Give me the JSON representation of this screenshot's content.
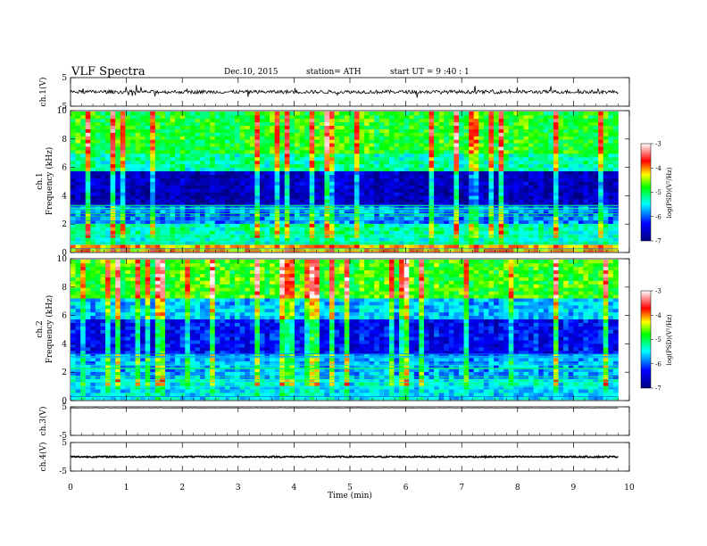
{
  "header": {
    "title": "VLF  Spectra",
    "date": "Dec.10, 2015",
    "station": "station= ATH",
    "start": "start  UT  =   9  :40 : 1"
  },
  "colors": {
    "axis": "#000000",
    "trace": "#000000",
    "colormap": [
      "#000080",
      "#0000ff",
      "#00ffff",
      "#00ff00",
      "#ffff00",
      "#ff0000",
      "#ffffff"
    ]
  },
  "chart_data": [
    {
      "type": "line",
      "panel": "ch1-waveform",
      "ylabel": "ch.1(V)",
      "ylim": [
        -5,
        5
      ],
      "yticks": [
        "5",
        "-5"
      ],
      "x_range_min": [
        0,
        9.8
      ],
      "baseline_v": 0,
      "noise_band_v": [
        -0.6,
        0.6
      ]
    },
    {
      "type": "heatmap",
      "panel": "ch1-spectrogram",
      "ylabel": "ch.1\nFrequency  (kHz)",
      "ylabel_lines": [
        "ch.1",
        "Frequency  (kHz)"
      ],
      "ylim": [
        0,
        10
      ],
      "yticks": [
        "0",
        "2",
        "4",
        "6",
        "8",
        "10"
      ],
      "x_range_min": [
        0,
        9.8
      ],
      "colorbar": {
        "label": "log(PSD)(V²/Hz)",
        "range": [
          -7,
          -3
        ],
        "ticks": [
          "-3",
          "-4",
          "-5",
          "-6",
          "-7"
        ]
      },
      "bands": [
        {
          "from": 0,
          "to": 0.6,
          "level": -4.2
        },
        {
          "from": 0.6,
          "to": 2.0,
          "level": -5.4
        },
        {
          "from": 2.0,
          "to": 3.2,
          "level": -6.0
        },
        {
          "from": 3.2,
          "to": 5.8,
          "level": -6.8
        },
        {
          "from": 5.8,
          "to": 7.0,
          "level": -5.4
        },
        {
          "from": 7.0,
          "to": 10,
          "level": -5.0
        }
      ]
    },
    {
      "type": "heatmap",
      "panel": "ch2-spectrogram",
      "ylabel": "ch.2\nFrequency  (kHz)",
      "ylabel_lines": [
        "ch.2",
        "Frequency  (kHz)"
      ],
      "ylim": [
        0,
        10
      ],
      "yticks": [
        "0",
        "2",
        "4",
        "6",
        "8",
        "10"
      ],
      "x_range_min": [
        0,
        9.8
      ],
      "colorbar": {
        "label": "log(PSD)(V²/Hz)",
        "range": [
          -7,
          -3
        ],
        "ticks": [
          "-3",
          "-4",
          "-5",
          "-6",
          "-7"
        ]
      },
      "bands": [
        {
          "from": 0,
          "to": 1.6,
          "level": -5.6
        },
        {
          "from": 1.6,
          "to": 3.2,
          "level": -5.9
        },
        {
          "from": 3.2,
          "to": 5.8,
          "level": -6.5
        },
        {
          "from": 5.8,
          "to": 7.2,
          "level": -5.8
        },
        {
          "from": 7.2,
          "to": 10,
          "level": -4.9
        }
      ]
    },
    {
      "type": "line",
      "panel": "ch3-waveform",
      "ylabel": "ch.3(V)",
      "ylim": [
        -5,
        5
      ],
      "yticks": [
        "5",
        "-5"
      ],
      "x_range_min": [
        0,
        9.8
      ],
      "baseline_v": 4.6
    },
    {
      "type": "line",
      "panel": "ch4-waveform",
      "ylabel": "ch.4(V)",
      "ylim": [
        -5,
        5
      ],
      "yticks": [
        "5",
        "-5"
      ],
      "x_range_min": [
        0,
        9.8
      ],
      "baseline_v": 0
    }
  ],
  "xaxis": {
    "label": "Time  (min)",
    "ticks": [
      "0",
      "1",
      "2",
      "3",
      "4",
      "5",
      "6",
      "7",
      "8",
      "9",
      "10"
    ],
    "xlim": [
      0,
      10
    ]
  }
}
